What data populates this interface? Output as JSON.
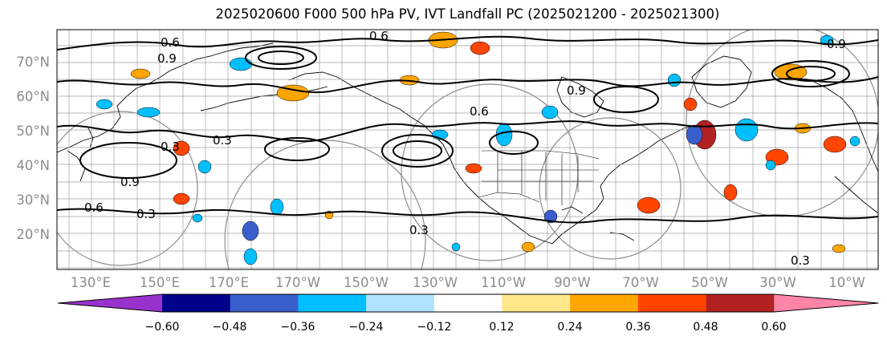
{
  "title": "2025020600 F000 500 hPa PV, IVT Landfall PC (2025021200 - 2025021300)",
  "lat_labels": [
    "70°N",
    "60°N",
    "50°N",
    "40°N",
    "30°N",
    "20°N"
  ],
  "lon_labels": [
    "130°E",
    "150°E",
    "170°E",
    "170°W",
    "150°W",
    "130°W",
    "110°W",
    "90°W",
    "70°W",
    "50°W",
    "30°W",
    "10°W"
  ],
  "colorbar": {
    "tick_labels": [
      "−0.60",
      "−0.48",
      "−0.36",
      "−0.24",
      "−0.12",
      "0.12",
      "0.24",
      "0.36",
      "0.48",
      "0.60"
    ],
    "colors": [
      "#9932cc",
      "#00008b",
      "#3a5fcd",
      "#00bfff",
      "#b0e2ff",
      "#ffffff",
      "#ffe78a",
      "#ffa500",
      "#ff4500",
      "#b22222",
      "#ff85a8"
    ]
  },
  "contour_labels": [
    "0.6",
    "0.9",
    "0.3",
    "0.6",
    "0.9",
    "0.6",
    "0.3",
    "0.9",
    "0.3",
    "0.6",
    "0.9",
    "0.3",
    "0.3"
  ],
  "fill_colors": {
    "positive_light": "#ffa500",
    "positive_strong": "#ff4500",
    "positive_max": "#b22222",
    "negative_light": "#b0e2ff",
    "negative_mid": "#00bfff",
    "negative_strong": "#3a5fcd"
  }
}
